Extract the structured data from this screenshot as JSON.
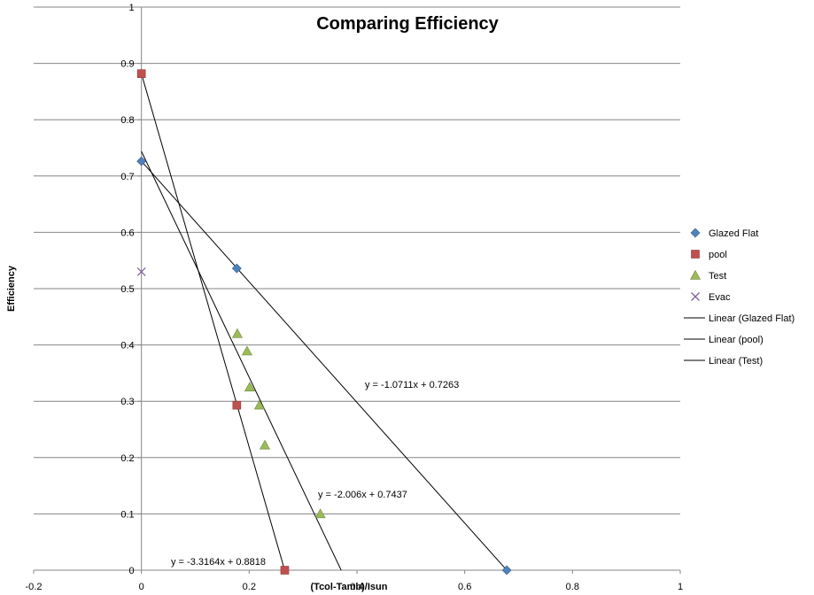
{
  "chart_data": {
    "type": "scatter",
    "title": "Comparing Efficiency",
    "xlabel": "(Tcol-Tamb)/Isun",
    "ylabel": "Efficiency",
    "xlim": [
      -0.2,
      1
    ],
    "ylim": [
      0,
      1
    ],
    "x_ticks": [
      -0.2,
      0,
      0.2,
      0.4,
      0.6,
      0.8,
      1
    ],
    "y_ticks": [
      0,
      0.1,
      0.2,
      0.3,
      0.4,
      0.5,
      0.6,
      0.7,
      0.8,
      0.9,
      1
    ],
    "x_tick_labels": [
      "-0.2",
      "0",
      "0.2",
      "0.4",
      "0.6",
      "0.8",
      "1"
    ],
    "y_tick_labels": [
      "0",
      "0.1",
      "0.2",
      "0.3",
      "0.4",
      "0.5",
      "0.6",
      "0.7",
      "0.8",
      "0.9",
      "1"
    ],
    "grid": "horizontal",
    "legend_position": "right",
    "series": [
      {
        "name": "Glazed Flat",
        "marker": "diamond",
        "color": "#4f81bd",
        "points": [
          [
            0,
            0.7263
          ],
          [
            0.177,
            0.536
          ],
          [
            0.678,
            0
          ]
        ]
      },
      {
        "name": "pool",
        "marker": "square",
        "color": "#c0504d",
        "points": [
          [
            0,
            0.8818
          ],
          [
            0.177,
            0.293
          ],
          [
            0.266,
            0
          ]
        ]
      },
      {
        "name": "Test",
        "marker": "triangle",
        "color": "#9bbb59",
        "points": [
          [
            0.178,
            0.42
          ],
          [
            0.196,
            0.389
          ],
          [
            0.201,
            0.325
          ],
          [
            0.219,
            0.293
          ],
          [
            0.229,
            0.222
          ],
          [
            0.332,
            0.1
          ]
        ]
      },
      {
        "name": "Evac",
        "marker": "x",
        "color": "#8064a2",
        "points": [
          [
            0,
            0.53
          ]
        ]
      }
    ],
    "trendlines": [
      {
        "name": "Linear (Glazed Flat)",
        "slope": -1.0711,
        "intercept": 0.7263,
        "x_range": [
          0,
          0.678
        ],
        "equation": "y = -1.0711x + 0.7263",
        "color": "#000000"
      },
      {
        "name": "Linear (pool)",
        "slope": -3.3164,
        "intercept": 0.8818,
        "x_range": [
          0,
          0.2659
        ],
        "equation": "y = -3.3164x + 0.8818",
        "color": "#000000"
      },
      {
        "name": "Linear (Test)",
        "slope": -2.006,
        "intercept": 0.7437,
        "x_range": [
          0,
          0.3707
        ],
        "equation": "y = -2.006x + 0.7437",
        "color": "#000000"
      }
    ]
  }
}
